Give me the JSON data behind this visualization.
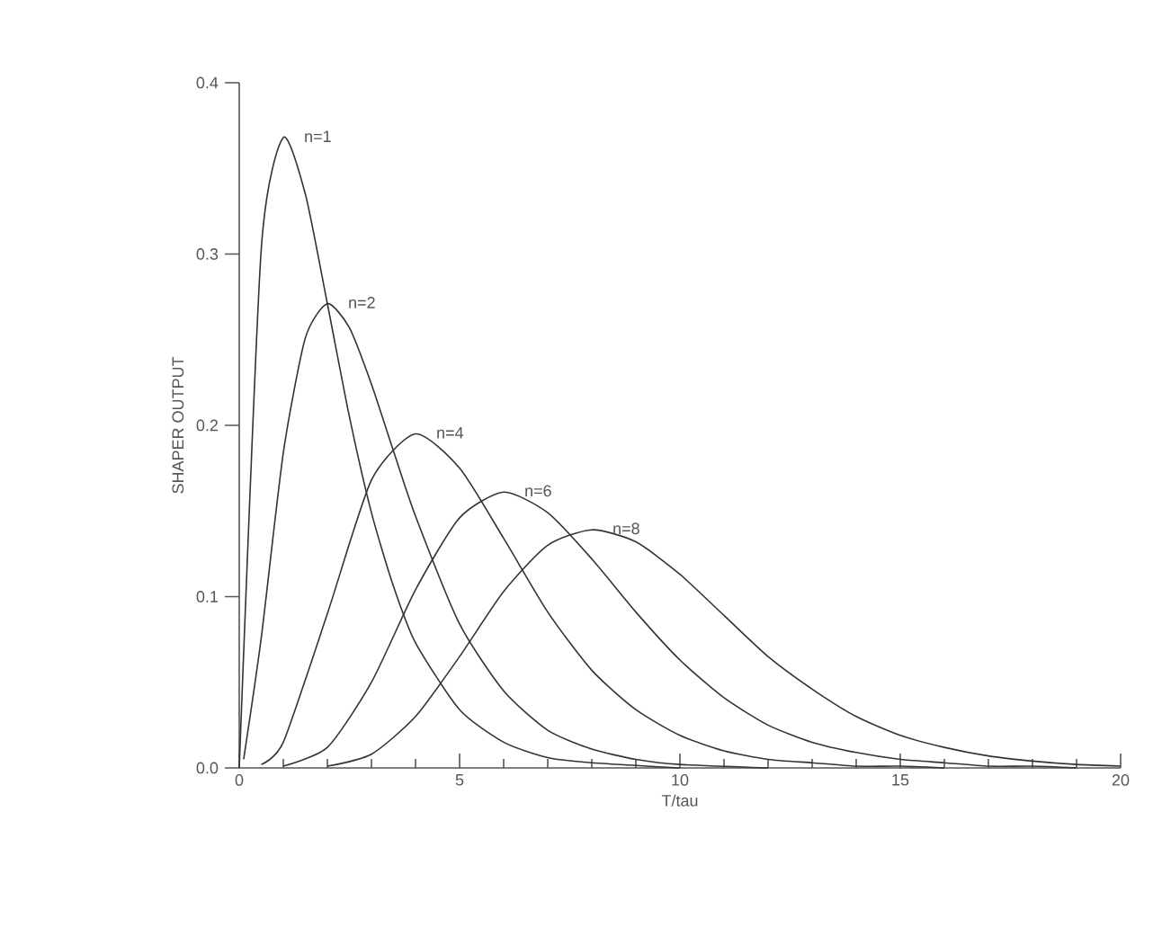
{
  "chart_data": {
    "type": "line",
    "xlabel": "T/tau",
    "ylabel": "SHAPER OUTPUT",
    "xlim": [
      0,
      20
    ],
    "ylim": [
      0,
      0.4
    ],
    "xticks": [
      0,
      5,
      10,
      15,
      20
    ],
    "yticks": [
      {
        "value": 0,
        "label": "0.0"
      },
      {
        "value": 0.1,
        "label": "0.1"
      },
      {
        "value": 0.2,
        "label": "0.2"
      },
      {
        "value": 0.3,
        "label": "0.3"
      },
      {
        "value": 0.4,
        "label": "0.4"
      }
    ],
    "grid": false,
    "legend": false,
    "marker": "none",
    "line_style": "solid",
    "series": [
      {
        "name": "n=1",
        "color": "#333333",
        "x": [
          0,
          0.5,
          1,
          1.5,
          2,
          2.5,
          3,
          3.5,
          4,
          5,
          6,
          7,
          8,
          10
        ],
        "values": [
          0,
          0.303,
          0.368,
          0.335,
          0.271,
          0.205,
          0.149,
          0.106,
          0.073,
          0.034,
          0.015,
          0.006,
          0.003,
          0
        ]
      },
      {
        "name": "n=2",
        "color": "#333333",
        "x": [
          0.1,
          0.5,
          1,
          1.5,
          2,
          2.5,
          3,
          3.5,
          4,
          5,
          6,
          7,
          8,
          9,
          10,
          12
        ],
        "values": [
          0.005,
          0.076,
          0.184,
          0.251,
          0.271,
          0.257,
          0.224,
          0.185,
          0.147,
          0.084,
          0.045,
          0.022,
          0.011,
          0.005,
          0.002,
          0
        ]
      },
      {
        "name": "n=4",
        "color": "#333333",
        "x": [
          0.5,
          1,
          2,
          3,
          4,
          5,
          6,
          7,
          8,
          9,
          10,
          11,
          12,
          13,
          14,
          15,
          16
        ],
        "values": [
          0.002,
          0.015,
          0.09,
          0.168,
          0.195,
          0.175,
          0.134,
          0.091,
          0.057,
          0.034,
          0.019,
          0.01,
          0.005,
          0.003,
          0.001,
          0.001,
          0
        ]
      },
      {
        "name": "n=6",
        "color": "#333333",
        "x": [
          1,
          2,
          3,
          4,
          5,
          6,
          7,
          8,
          9,
          10,
          11,
          12,
          13,
          14,
          15,
          16,
          17,
          18,
          19
        ],
        "values": [
          0.001,
          0.012,
          0.05,
          0.104,
          0.146,
          0.161,
          0.149,
          0.122,
          0.091,
          0.063,
          0.041,
          0.025,
          0.015,
          0.009,
          0.005,
          0.003,
          0.001,
          0.001,
          0
        ]
      },
      {
        "name": "n=8",
        "color": "#333333",
        "x": [
          2,
          3,
          4,
          5,
          6,
          7,
          8,
          9,
          10,
          11,
          12,
          13,
          14,
          15,
          16,
          17,
          18,
          19,
          20
        ],
        "values": [
          0.001,
          0.008,
          0.03,
          0.065,
          0.103,
          0.13,
          0.139,
          0.132,
          0.113,
          0.089,
          0.065,
          0.046,
          0.03,
          0.019,
          0.012,
          0.007,
          0.004,
          0.002,
          0.001
        ]
      }
    ]
  }
}
